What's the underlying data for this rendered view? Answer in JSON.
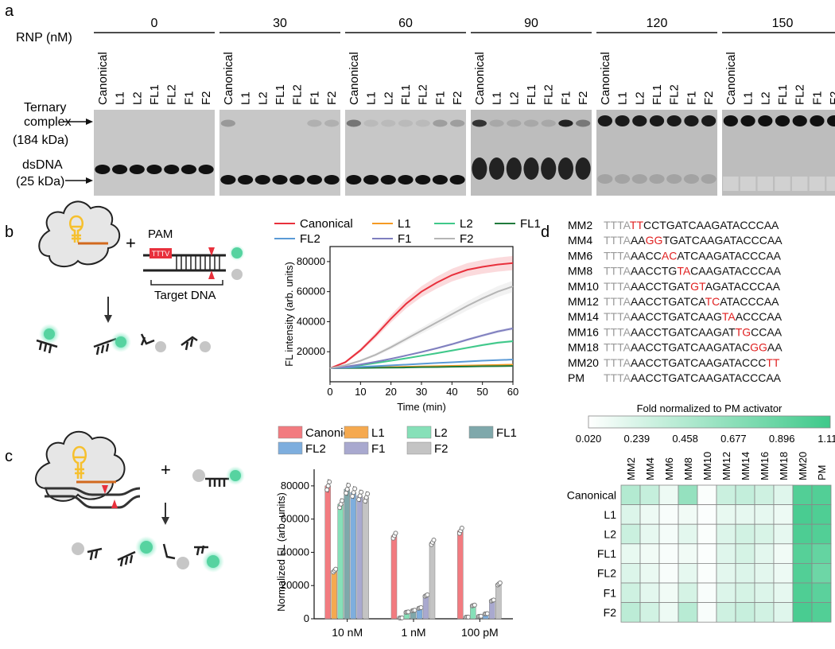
{
  "panel_a": {
    "letter": "a",
    "rnp_label": "RNP (nM)",
    "concentrations": [
      "0",
      "30",
      "60",
      "90",
      "120",
      "150"
    ],
    "lanes": [
      "Canonical",
      "L1",
      "L2",
      "FL1",
      "FL2",
      "F1",
      "F2"
    ],
    "ternary_label": [
      "Ternary",
      "complex",
      "(184 kDa)"
    ],
    "dsdna_label": [
      "dsDNA",
      "(25 kDa)"
    ]
  },
  "panel_b": {
    "letter": "b",
    "pam": "PAM",
    "pam_seq": "TTTV",
    "target_dna": "Target DNA",
    "colors": {
      "red": "#e8303c",
      "orange": "#f59a23",
      "green": "#2b9f5c",
      "light_green": "#3fc88a",
      "blue": "#5a9ad6",
      "purple": "#7f7fbf",
      "gray": "#b5b5b5",
      "dark_green": "#1f7a3c"
    }
  },
  "panel_c": {
    "letter": "c"
  },
  "panel_d": {
    "letter": "d",
    "sequences": [
      {
        "name": "MM2",
        "segs": [
          [
            "TTTA",
            "g"
          ],
          [
            "TT",
            "r"
          ],
          [
            "CCTGATCAAGATACCCAA",
            "k"
          ]
        ]
      },
      {
        "name": "MM4",
        "segs": [
          [
            "TTTA",
            "g"
          ],
          [
            "AA",
            "k"
          ],
          [
            "GG",
            "r"
          ],
          [
            "TGATCAAGATACCCAA",
            "k"
          ]
        ]
      },
      {
        "name": "MM6",
        "segs": [
          [
            "TTTA",
            "g"
          ],
          [
            "AACC",
            "k"
          ],
          [
            "AC",
            "r"
          ],
          [
            "ATCAAGATACCCAA",
            "k"
          ]
        ]
      },
      {
        "name": "MM8",
        "segs": [
          [
            "TTTA",
            "g"
          ],
          [
            "AACCTG",
            "k"
          ],
          [
            "TA",
            "r"
          ],
          [
            "CAAGATACCCAA",
            "k"
          ]
        ]
      },
      {
        "name": "MM10",
        "segs": [
          [
            "TTTA",
            "g"
          ],
          [
            "AACCTGAT",
            "k"
          ],
          [
            "GT",
            "r"
          ],
          [
            "AGATACCCAA",
            "k"
          ]
        ]
      },
      {
        "name": "MM12",
        "segs": [
          [
            "TTTA",
            "g"
          ],
          [
            "AACCTGATCA",
            "k"
          ],
          [
            "TC",
            "r"
          ],
          [
            "ATACCCAA",
            "k"
          ]
        ]
      },
      {
        "name": "MM14",
        "segs": [
          [
            "TTTA",
            "g"
          ],
          [
            "AACCTGATCAAG",
            "k"
          ],
          [
            "TA",
            "r"
          ],
          [
            "ACCCAA",
            "k"
          ]
        ]
      },
      {
        "name": "MM16",
        "segs": [
          [
            "TTTA",
            "g"
          ],
          [
            "AACCTGATCAAGAT",
            "k"
          ],
          [
            "TG",
            "r"
          ],
          [
            "CCAA",
            "k"
          ]
        ]
      },
      {
        "name": "MM18",
        "segs": [
          [
            "TTTA",
            "g"
          ],
          [
            "AACCTGATCAAGATAC",
            "k"
          ],
          [
            "GG",
            "r"
          ],
          [
            "AA",
            "k"
          ]
        ]
      },
      {
        "name": "MM20",
        "segs": [
          [
            "TTTA",
            "g"
          ],
          [
            "AACCTGATCAAGATACCC",
            "k"
          ],
          [
            "TT",
            "r"
          ]
        ]
      },
      {
        "name": "PM",
        "segs": [
          [
            "TTTA",
            "g"
          ],
          [
            "AACCTGATCAAGATACCCAA",
            "k"
          ]
        ]
      }
    ]
  },
  "chart_data": [
    {
      "type": "line",
      "title": "",
      "xlabel": "Time (min)",
      "ylabel": "FL intensity (arb. units)",
      "xlim": [
        0,
        60
      ],
      "ylim": [
        0,
        90000
      ],
      "xticks": [
        "0",
        "10",
        "20",
        "30",
        "40",
        "50",
        "60"
      ],
      "yticks": [
        "20000",
        "40000",
        "60000",
        "80000"
      ],
      "x": [
        0,
        5,
        10,
        15,
        20,
        25,
        30,
        35,
        40,
        45,
        50,
        55,
        60
      ],
      "series": [
        {
          "name": "Canonical",
          "color": "#e8303c",
          "values": [
            9000,
            13000,
            21000,
            31000,
            42000,
            52000,
            60000,
            66000,
            71000,
            74500,
            76500,
            78000,
            79000
          ]
        },
        {
          "name": "L1",
          "color": "#f59a23",
          "values": [
            9000,
            9200,
            9400,
            9600,
            9800,
            10000,
            10200,
            10400,
            10600,
            10800,
            11000,
            11200,
            11400
          ]
        },
        {
          "name": "L2",
          "color": "#3fc88a",
          "values": [
            9000,
            9800,
            11000,
            12500,
            14000,
            15600,
            17300,
            19000,
            20800,
            22600,
            24400,
            26000,
            27000
          ]
        },
        {
          "name": "FL1",
          "color": "#1f7a3c",
          "values": [
            9000,
            9100,
            9200,
            9300,
            9400,
            9500,
            9700,
            9800,
            10000,
            10100,
            10300,
            10400,
            10500
          ]
        },
        {
          "name": "FL2",
          "color": "#5a9ad6",
          "values": [
            9000,
            9400,
            9900,
            10400,
            10900,
            11400,
            12000,
            12500,
            13000,
            13500,
            14000,
            14400,
            14800
          ]
        },
        {
          "name": "F1",
          "color": "#7f7fbf",
          "values": [
            9000,
            10000,
            11500,
            13300,
            15300,
            17500,
            19800,
            22300,
            25000,
            28000,
            30800,
            33500,
            35500
          ]
        },
        {
          "name": "F2",
          "color": "#b5b5b5",
          "values": [
            9000,
            11000,
            14000,
            18000,
            23000,
            28500,
            34000,
            39500,
            45000,
            50500,
            55500,
            60000,
            63500
          ]
        }
      ]
    },
    {
      "type": "bar",
      "xlabel": "",
      "ylabel": "Normalized FL (arb. units)",
      "ylim": [
        0,
        90000
      ],
      "yticks": [
        "0",
        "20000",
        "40000",
        "60000",
        "80000"
      ],
      "categories": [
        "10 nM",
        "1 nM",
        "100 pM"
      ],
      "series": [
        {
          "name": "Canonical",
          "color": "#f27b80",
          "values": [
            80000,
            50000,
            53000
          ]
        },
        {
          "name": "L1",
          "color": "#f5a94f",
          "values": [
            29000,
            500,
            1000
          ]
        },
        {
          "name": "L2",
          "color": "#86e0b8",
          "values": [
            69000,
            4000,
            8000
          ]
        },
        {
          "name": "FL1",
          "color": "#7fa8ab",
          "values": [
            78000,
            5000,
            1500
          ]
        },
        {
          "name": "FL2",
          "color": "#7eaede",
          "values": [
            76000,
            6500,
            3000
          ]
        },
        {
          "name": "F1",
          "color": "#a9a9cf",
          "values": [
            74000,
            14000,
            11000
          ]
        },
        {
          "name": "F2",
          "color": "#c4c4c4",
          "values": [
            73000,
            46000,
            21000
          ]
        }
      ]
    },
    {
      "type": "heatmap",
      "title": "Fold normalized to PM activator",
      "colorbar_ticks": [
        "0.020",
        "0.239",
        "0.458",
        "0.677",
        "0.896",
        "1.115"
      ],
      "colorbar_range": [
        0.02,
        1.115
      ],
      "columns": [
        "MM2",
        "MM4",
        "MM6",
        "MM8",
        "MM10",
        "MM12",
        "MM14",
        "MM16",
        "MM18",
        "MM20",
        "PM"
      ],
      "rows": [
        "Canonical",
        "L1",
        "L2",
        "FL1",
        "FL2",
        "F1",
        "F2"
      ],
      "values": [
        [
          0.45,
          0.35,
          0.12,
          0.62,
          0.05,
          0.32,
          0.36,
          0.3,
          0.2,
          1.0,
          1.0
        ],
        [
          0.22,
          0.12,
          0.06,
          0.1,
          0.04,
          0.15,
          0.16,
          0.16,
          0.12,
          1.05,
          1.02
        ],
        [
          0.32,
          0.16,
          0.08,
          0.18,
          0.05,
          0.22,
          0.28,
          0.24,
          0.16,
          1.03,
          1.0
        ],
        [
          0.15,
          0.1,
          0.06,
          0.1,
          0.04,
          0.2,
          0.26,
          0.18,
          0.1,
          0.98,
          0.9
        ],
        [
          0.22,
          0.14,
          0.06,
          0.16,
          0.05,
          0.18,
          0.22,
          0.18,
          0.12,
          1.0,
          0.85
        ],
        [
          0.3,
          0.18,
          0.1,
          0.26,
          0.06,
          0.22,
          0.26,
          0.22,
          0.16,
          1.02,
          0.95
        ],
        [
          0.4,
          0.28,
          0.12,
          0.42,
          0.06,
          0.3,
          0.34,
          0.28,
          0.2,
          1.05,
          1.0
        ]
      ]
    }
  ]
}
